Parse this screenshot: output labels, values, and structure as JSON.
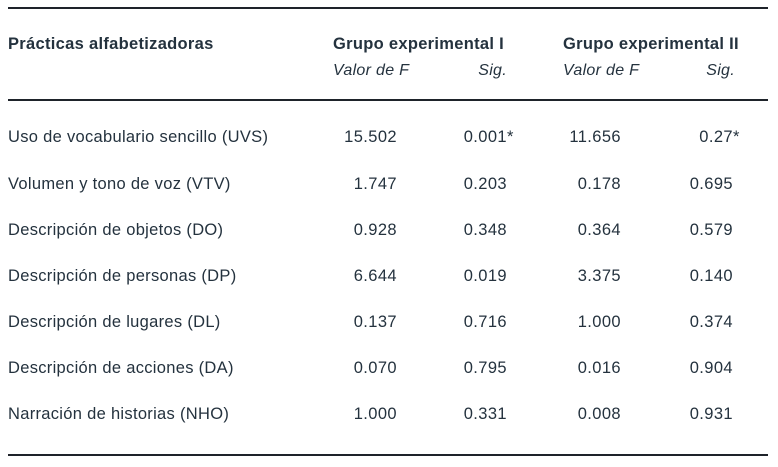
{
  "colors": {
    "background": "#ffffff",
    "text": "#24323E",
    "rule": "#1E232A"
  },
  "table": {
    "title_column_header": "Prácticas alfabetizadoras",
    "groups": [
      {
        "label": "Grupo experimental I",
        "col_f": "Valor de F",
        "col_sig": "Sig."
      },
      {
        "label": "Grupo experimental II",
        "col_f": "Valor de F",
        "col_sig": "Sig."
      }
    ],
    "rows": [
      {
        "label": "Uso de vocabulario sencillo (UVS)",
        "g1_f": "15.502",
        "g1_sig": "0.001",
        "g1_sig_star": "*",
        "g2_f": "11.656",
        "g2_sig": "0.27",
        "g2_sig_star": "*"
      },
      {
        "label": "Volumen y tono de voz (VTV)",
        "g1_f": "1.747",
        "g1_sig": "0.203",
        "g1_sig_star": "",
        "g2_f": "0.178",
        "g2_sig": "0.695",
        "g2_sig_star": ""
      },
      {
        "label": "Descripción de objetos (DO)",
        "g1_f": "0.928",
        "g1_sig": "0.348",
        "g1_sig_star": "",
        "g2_f": "0.364",
        "g2_sig": "0.579",
        "g2_sig_star": ""
      },
      {
        "label": "Descripción de personas (DP)",
        "g1_f": "6.644",
        "g1_sig": "0.019",
        "g1_sig_star": "",
        "g2_f": "3.375",
        "g2_sig": "0.140",
        "g2_sig_star": ""
      },
      {
        "label": "Descripción de lugares (DL)",
        "g1_f": "0.137",
        "g1_sig": "0.716",
        "g1_sig_star": "",
        "g2_f": "1.000",
        "g2_sig": "0.374",
        "g2_sig_star": ""
      },
      {
        "label": "Descripción de acciones (DA)",
        "g1_f": "0.070",
        "g1_sig": "0.795",
        "g1_sig_star": "",
        "g2_f": "0.016",
        "g2_sig": "0.904",
        "g2_sig_star": ""
      },
      {
        "label": "Narración de historias (NHO)",
        "g1_f": "1.000",
        "g1_sig": "0.331",
        "g1_sig_star": "",
        "g2_f": "0.008",
        "g2_sig": "0.931",
        "g2_sig_star": ""
      }
    ]
  }
}
